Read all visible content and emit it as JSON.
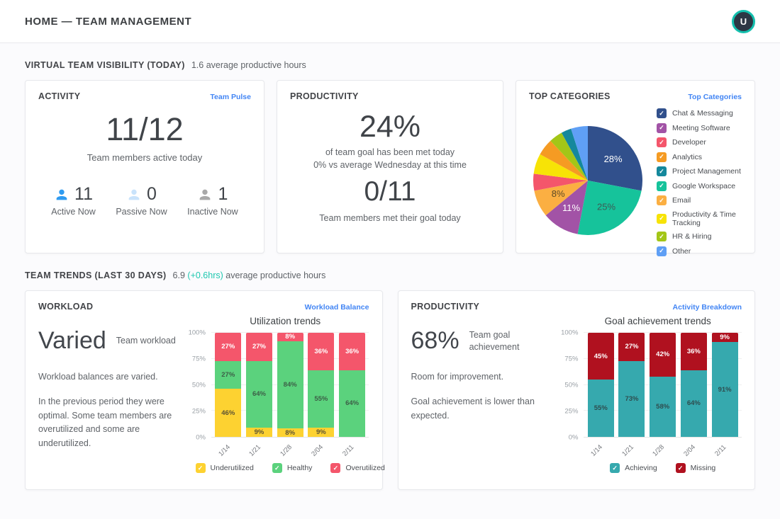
{
  "header": {
    "title": "HOME — TEAM MANAGEMENT",
    "avatar_initial": "U"
  },
  "colors": {
    "link_blue": "#4285f4",
    "accent_teal": "#1fc8b0",
    "avatar_ring": "#14c0ae",
    "active_blue": "#2f9bf0",
    "passive_blue": "#c9e3fb",
    "inactive_gray": "#a9a9a9"
  },
  "sections": {
    "visibility": {
      "title": "VIRTUAL TEAM VISIBILITY (TODAY)",
      "subtitle": "1.6 average productive hours"
    },
    "trends": {
      "title": "TEAM TRENDS (LAST 30 DAYS)",
      "value": "6.9",
      "delta": "(+0.6hrs)",
      "suffix": "average productive hours"
    }
  },
  "activity_card": {
    "title": "ACTIVITY",
    "link": "Team Pulse",
    "headline": "11/12",
    "headline_caption": "Team members active today",
    "stats": [
      {
        "label": "Active Now",
        "value": "11",
        "color": "#2f9bf0"
      },
      {
        "label": "Passive Now",
        "value": "0",
        "color": "#c9e3fb"
      },
      {
        "label": "Inactive Now",
        "value": "1",
        "color": "#a9a9a9"
      }
    ]
  },
  "productivity_card": {
    "title": "PRODUCTIVITY",
    "value": "24%",
    "line1": "of team goal has been met today",
    "line2": "0% vs average Wednesday at this time",
    "value2": "0/11",
    "line3": "Team members met their goal today"
  },
  "categories_card": {
    "title": "TOP CATEGORIES",
    "link": "Top Categories"
  },
  "workload_card": {
    "title": "WORKLOAD",
    "link": "Workload Balance",
    "headline": "Varied",
    "headline_caption": "Team workload",
    "p1": "Workload balances are varied.",
    "p2": "In the previous period they were optimal. Some team members are overutilized and some are underutilized."
  },
  "goal_card": {
    "title": "PRODUCTIVITY",
    "link": "Activity Breakdown",
    "headline": "68%",
    "headline_caption": "Team goal achievement",
    "p1": "Room for improvement.",
    "p2": "Goal achievement is lower than expected."
  },
  "chart_data": [
    {
      "type": "pie",
      "title": "Top categories share",
      "slices": [
        {
          "label": "Chat & Messaging",
          "value": 28,
          "color": "#31508c",
          "label_color": "#ffffff"
        },
        {
          "label": "Meeting Software",
          "value": 11,
          "color": "#a253a6",
          "label_color": "#ffffff"
        },
        {
          "label": "Developer",
          "value": 5,
          "color": "#f4566b"
        },
        {
          "label": "Analytics",
          "value": 5,
          "color": "#f59b23"
        },
        {
          "label": "Project Management",
          "value": 3,
          "color": "#14889c"
        },
        {
          "label": "Google Workspace",
          "value": 25,
          "color": "#16c39b",
          "label_color": "#3d5b55"
        },
        {
          "label": "Email",
          "value": 8,
          "color": "#fbaf42",
          "label_color": "#5d4a26"
        },
        {
          "label": "Productivity & Time Tracking",
          "value": 6,
          "color": "#f7e306"
        },
        {
          "label": "HR & Hiring",
          "value": 4,
          "color": "#a3c617"
        },
        {
          "label": "Other",
          "value": 5,
          "color": "#5f9ff5"
        }
      ],
      "draw_order": [
        0,
        5,
        1,
        6,
        2,
        7,
        3,
        8,
        4,
        9
      ],
      "label_min_value": 8,
      "legend_position": "right"
    },
    {
      "type": "bar",
      "stacked": true,
      "title": "Utilization trends",
      "categories": [
        "1/14",
        "1/21",
        "1/28",
        "2/04",
        "2/11"
      ],
      "series": [
        {
          "name": "Underutilized",
          "color": "#fdd231",
          "label_color": "#5c5333",
          "values": [
            46,
            9,
            8,
            9,
            0
          ]
        },
        {
          "name": "Healthy",
          "color": "#5bd27d",
          "label_color": "#3c5f47",
          "values": [
            27,
            64,
            84,
            55,
            64
          ]
        },
        {
          "name": "Overutilized",
          "color": "#f4566b",
          "label_color": "#ffffff",
          "values": [
            27,
            27,
            8,
            36,
            36
          ]
        }
      ],
      "yticks": [
        "0%",
        "25%",
        "50%",
        "75%",
        "100%"
      ],
      "ylim": [
        0,
        100
      ],
      "legend_position": "bottom"
    },
    {
      "type": "bar",
      "stacked": true,
      "title": "Goal achievement trends",
      "categories": [
        "1/14",
        "1/21",
        "1/28",
        "2/04",
        "2/11"
      ],
      "series": [
        {
          "name": "Achieving",
          "color": "#36a9ae",
          "label_color": "#2e4d4f",
          "values": [
            55,
            73,
            58,
            64,
            91
          ]
        },
        {
          "name": "Missing",
          "color": "#b0111f",
          "label_color": "#ffffff",
          "values": [
            45,
            27,
            42,
            36,
            9
          ]
        }
      ],
      "yticks": [
        "0%",
        "25%",
        "50%",
        "75%",
        "100%"
      ],
      "ylim": [
        0,
        100
      ],
      "legend_position": "bottom"
    }
  ]
}
